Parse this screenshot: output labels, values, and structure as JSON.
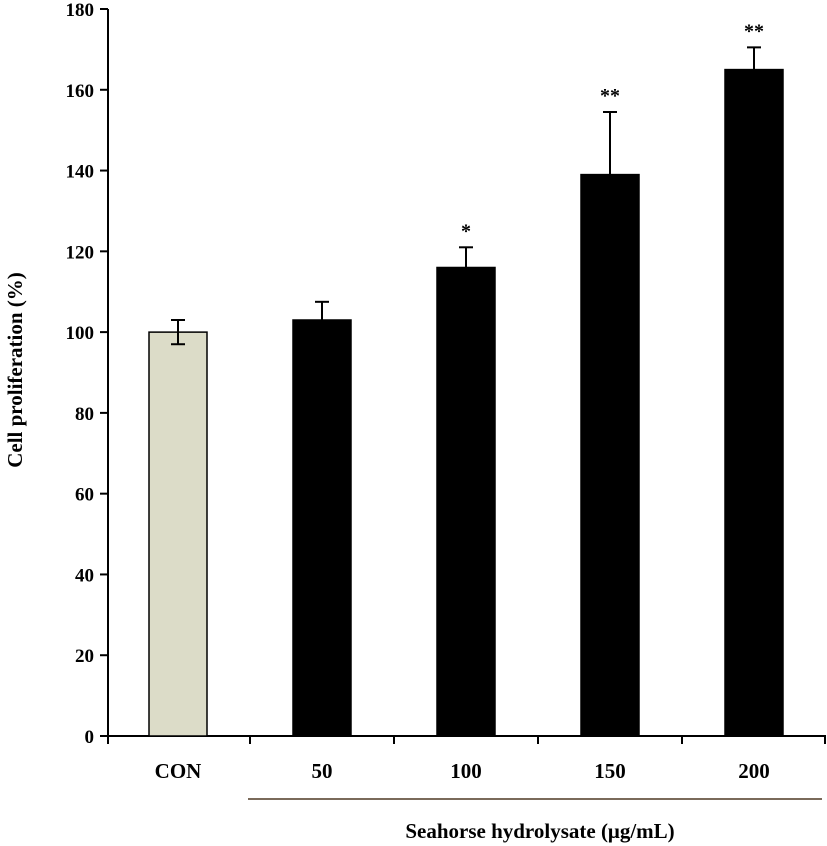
{
  "chart_data": {
    "type": "bar",
    "title": "",
    "ylabel": "Cell proliferation (%)",
    "xlabel": "Seahorse hydrolysate (μg/mL)",
    "ylim": [
      0,
      180
    ],
    "yticks": [
      0,
      20,
      40,
      60,
      80,
      100,
      120,
      140,
      160,
      180
    ],
    "categories": [
      "CON",
      "50",
      "100",
      "150",
      "200"
    ],
    "values": [
      100,
      103,
      116,
      139,
      165
    ],
    "errors": [
      3,
      4.5,
      5,
      15.5,
      5.5
    ],
    "significance": [
      "",
      "",
      "*",
      "**",
      "**"
    ],
    "bar_colors": [
      "#dcdcc8",
      "#000000",
      "#000000",
      "#000000",
      "#000000"
    ],
    "grid": false
  }
}
